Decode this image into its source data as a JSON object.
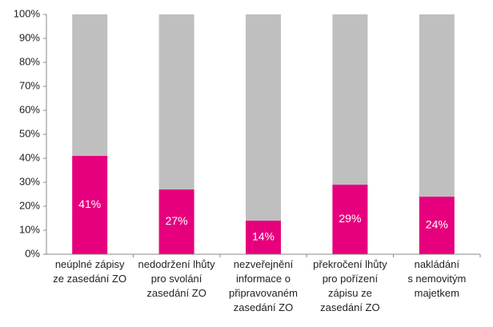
{
  "chart_data": {
    "type": "stacked_bar",
    "categories": [
      [
        "neúplné zápisy",
        "ze zasedání ZO"
      ],
      [
        "nedodržení lhůty",
        "pro svolání",
        "zasedání ZO"
      ],
      [
        "nezveřejnění",
        "informace o",
        "připravovaném",
        "zasedání ZO"
      ],
      [
        "překročení lhůty",
        "pro pořízení",
        "zápisu ze",
        "zasedání ZO"
      ],
      [
        "nakládání",
        "s nemovitým",
        "majetkem"
      ]
    ],
    "series": [
      {
        "color": "#e6007e",
        "values": [
          41,
          27,
          14,
          29,
          24
        ],
        "value_labels": [
          "41%",
          "27%",
          "14%",
          "29%",
          "24%"
        ]
      },
      {
        "color": "#bfbfbf",
        "values": [
          59,
          73,
          86,
          71,
          76
        ]
      }
    ],
    "ylim": [
      0,
      100
    ],
    "yticks": [
      {
        "value": 0,
        "label": "0%"
      },
      {
        "value": 10,
        "label": "10%"
      },
      {
        "value": 20,
        "label": "20%"
      },
      {
        "value": 30,
        "label": "30%"
      },
      {
        "value": 40,
        "label": "40%"
      },
      {
        "value": 50,
        "label": "50%"
      },
      {
        "value": 60,
        "label": "60%"
      },
      {
        "value": 70,
        "label": "70%"
      },
      {
        "value": 80,
        "label": "80%"
      },
      {
        "value": 90,
        "label": "90%"
      },
      {
        "value": 100,
        "label": "100%"
      }
    ]
  }
}
